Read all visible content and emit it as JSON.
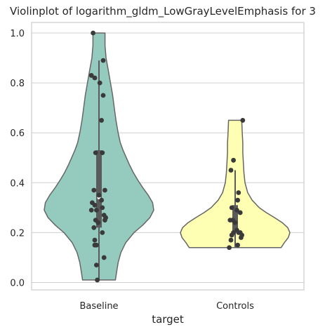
{
  "chart_data": {
    "type": "violin",
    "title": "Violinplot of logarithm_gldm_LowGrayLevelEmphasis for 3",
    "xlabel": "target",
    "ylabel": "",
    "ylim": [
      -0.03,
      1.05
    ],
    "yticks": [
      0.0,
      0.2,
      0.4,
      0.6,
      0.8,
      1.0
    ],
    "ytick_labels": [
      "0.0",
      "0.2",
      "0.4",
      "0.6",
      "0.8",
      "1.0"
    ],
    "grid": true,
    "categories": [
      "Baseline",
      "Controls"
    ],
    "colors": {
      "Baseline": "#95cbbf",
      "Controls": "#ffffb3",
      "outline": "#666666",
      "box": "#5b5b5b",
      "points": "#3a3a3a",
      "grid": "#d0d0d0"
    },
    "violins": [
      {
        "category": "Baseline",
        "box": {
          "whisker_low": 0.01,
          "q1": 0.22,
          "median": 0.34,
          "q3": 0.53,
          "whisker_high": 0.89
        },
        "density": [
          [
            0.01,
            0.3
          ],
          [
            0.04,
            0.32
          ],
          [
            0.08,
            0.35
          ],
          [
            0.12,
            0.4
          ],
          [
            0.16,
            0.49
          ],
          [
            0.2,
            0.64
          ],
          [
            0.23,
            0.8
          ],
          [
            0.26,
            0.93
          ],
          [
            0.29,
            1.0
          ],
          [
            0.32,
            0.98
          ],
          [
            0.35,
            0.9
          ],
          [
            0.38,
            0.8
          ],
          [
            0.41,
            0.71
          ],
          [
            0.44,
            0.63
          ],
          [
            0.47,
            0.56
          ],
          [
            0.5,
            0.5
          ],
          [
            0.53,
            0.44
          ],
          [
            0.56,
            0.39
          ],
          [
            0.6,
            0.35
          ],
          [
            0.65,
            0.31
          ],
          [
            0.7,
            0.28
          ],
          [
            0.75,
            0.25
          ],
          [
            0.8,
            0.21
          ],
          [
            0.85,
            0.17
          ],
          [
            0.9,
            0.13
          ],
          [
            0.95,
            0.11
          ],
          [
            1.0,
            0.11
          ]
        ],
        "points": [
          [
            -0.07,
            1.0
          ],
          [
            -0.09,
            0.83
          ],
          [
            -0.05,
            0.82
          ],
          [
            0.05,
            0.89
          ],
          [
            0.01,
            0.8
          ],
          [
            0.05,
            0.75
          ],
          [
            0.03,
            0.65
          ],
          [
            -0.04,
            0.52
          ],
          [
            0.04,
            0.52
          ],
          [
            -0.06,
            0.37
          ],
          [
            0.07,
            0.37
          ],
          [
            0.0,
            0.35
          ],
          [
            -0.08,
            0.32
          ],
          [
            0.03,
            0.33
          ],
          [
            -0.05,
            0.31
          ],
          [
            -0.09,
            0.29
          ],
          [
            -0.03,
            0.29
          ],
          [
            0.04,
            0.3
          ],
          [
            0.06,
            0.27
          ],
          [
            0.08,
            0.26
          ],
          [
            -0.04,
            0.25
          ],
          [
            0.07,
            0.25
          ],
          [
            -0.01,
            0.24
          ],
          [
            -0.06,
            0.22
          ],
          [
            0.04,
            0.2
          ],
          [
            -0.05,
            0.17
          ],
          [
            -0.05,
            0.15
          ],
          [
            -0.03,
            0.15
          ],
          [
            0.06,
            0.1
          ],
          [
            -0.03,
            0.07
          ],
          [
            -0.02,
            0.01
          ]
        ]
      },
      {
        "category": "Controls",
        "box": {
          "whisker_low": 0.14,
          "q1": 0.2,
          "median": 0.24,
          "q3": 0.31,
          "whisker_high": 0.45
        },
        "density": [
          [
            0.14,
            0.84
          ],
          [
            0.16,
            0.9
          ],
          [
            0.18,
            0.97
          ],
          [
            0.2,
            1.0
          ],
          [
            0.22,
            0.96
          ],
          [
            0.24,
            0.86
          ],
          [
            0.26,
            0.72
          ],
          [
            0.28,
            0.57
          ],
          [
            0.3,
            0.44
          ],
          [
            0.33,
            0.31
          ],
          [
            0.36,
            0.23
          ],
          [
            0.4,
            0.18
          ],
          [
            0.44,
            0.16
          ],
          [
            0.48,
            0.15
          ],
          [
            0.52,
            0.14
          ],
          [
            0.56,
            0.14
          ],
          [
            0.6,
            0.13
          ],
          [
            0.65,
            0.12
          ]
        ],
        "points": [
          [
            0.09,
            0.65
          ],
          [
            -0.02,
            0.49
          ],
          [
            -0.05,
            0.45
          ],
          [
            0.04,
            0.36
          ],
          [
            0.03,
            0.33
          ],
          [
            -0.04,
            0.3
          ],
          [
            0.02,
            0.29
          ],
          [
            0.06,
            0.28
          ],
          [
            -0.06,
            0.25
          ],
          [
            -0.03,
            0.25
          ],
          [
            0.0,
            0.24
          ],
          [
            0.02,
            0.21
          ],
          [
            0.04,
            0.2
          ],
          [
            0.06,
            0.2
          ],
          [
            0.08,
            0.19
          ],
          [
            -0.02,
            0.2
          ],
          [
            0.07,
            0.18
          ],
          [
            -0.04,
            0.19
          ],
          [
            -0.05,
            0.17
          ],
          [
            0.03,
            0.15
          ],
          [
            -0.07,
            0.14
          ]
        ]
      }
    ]
  }
}
